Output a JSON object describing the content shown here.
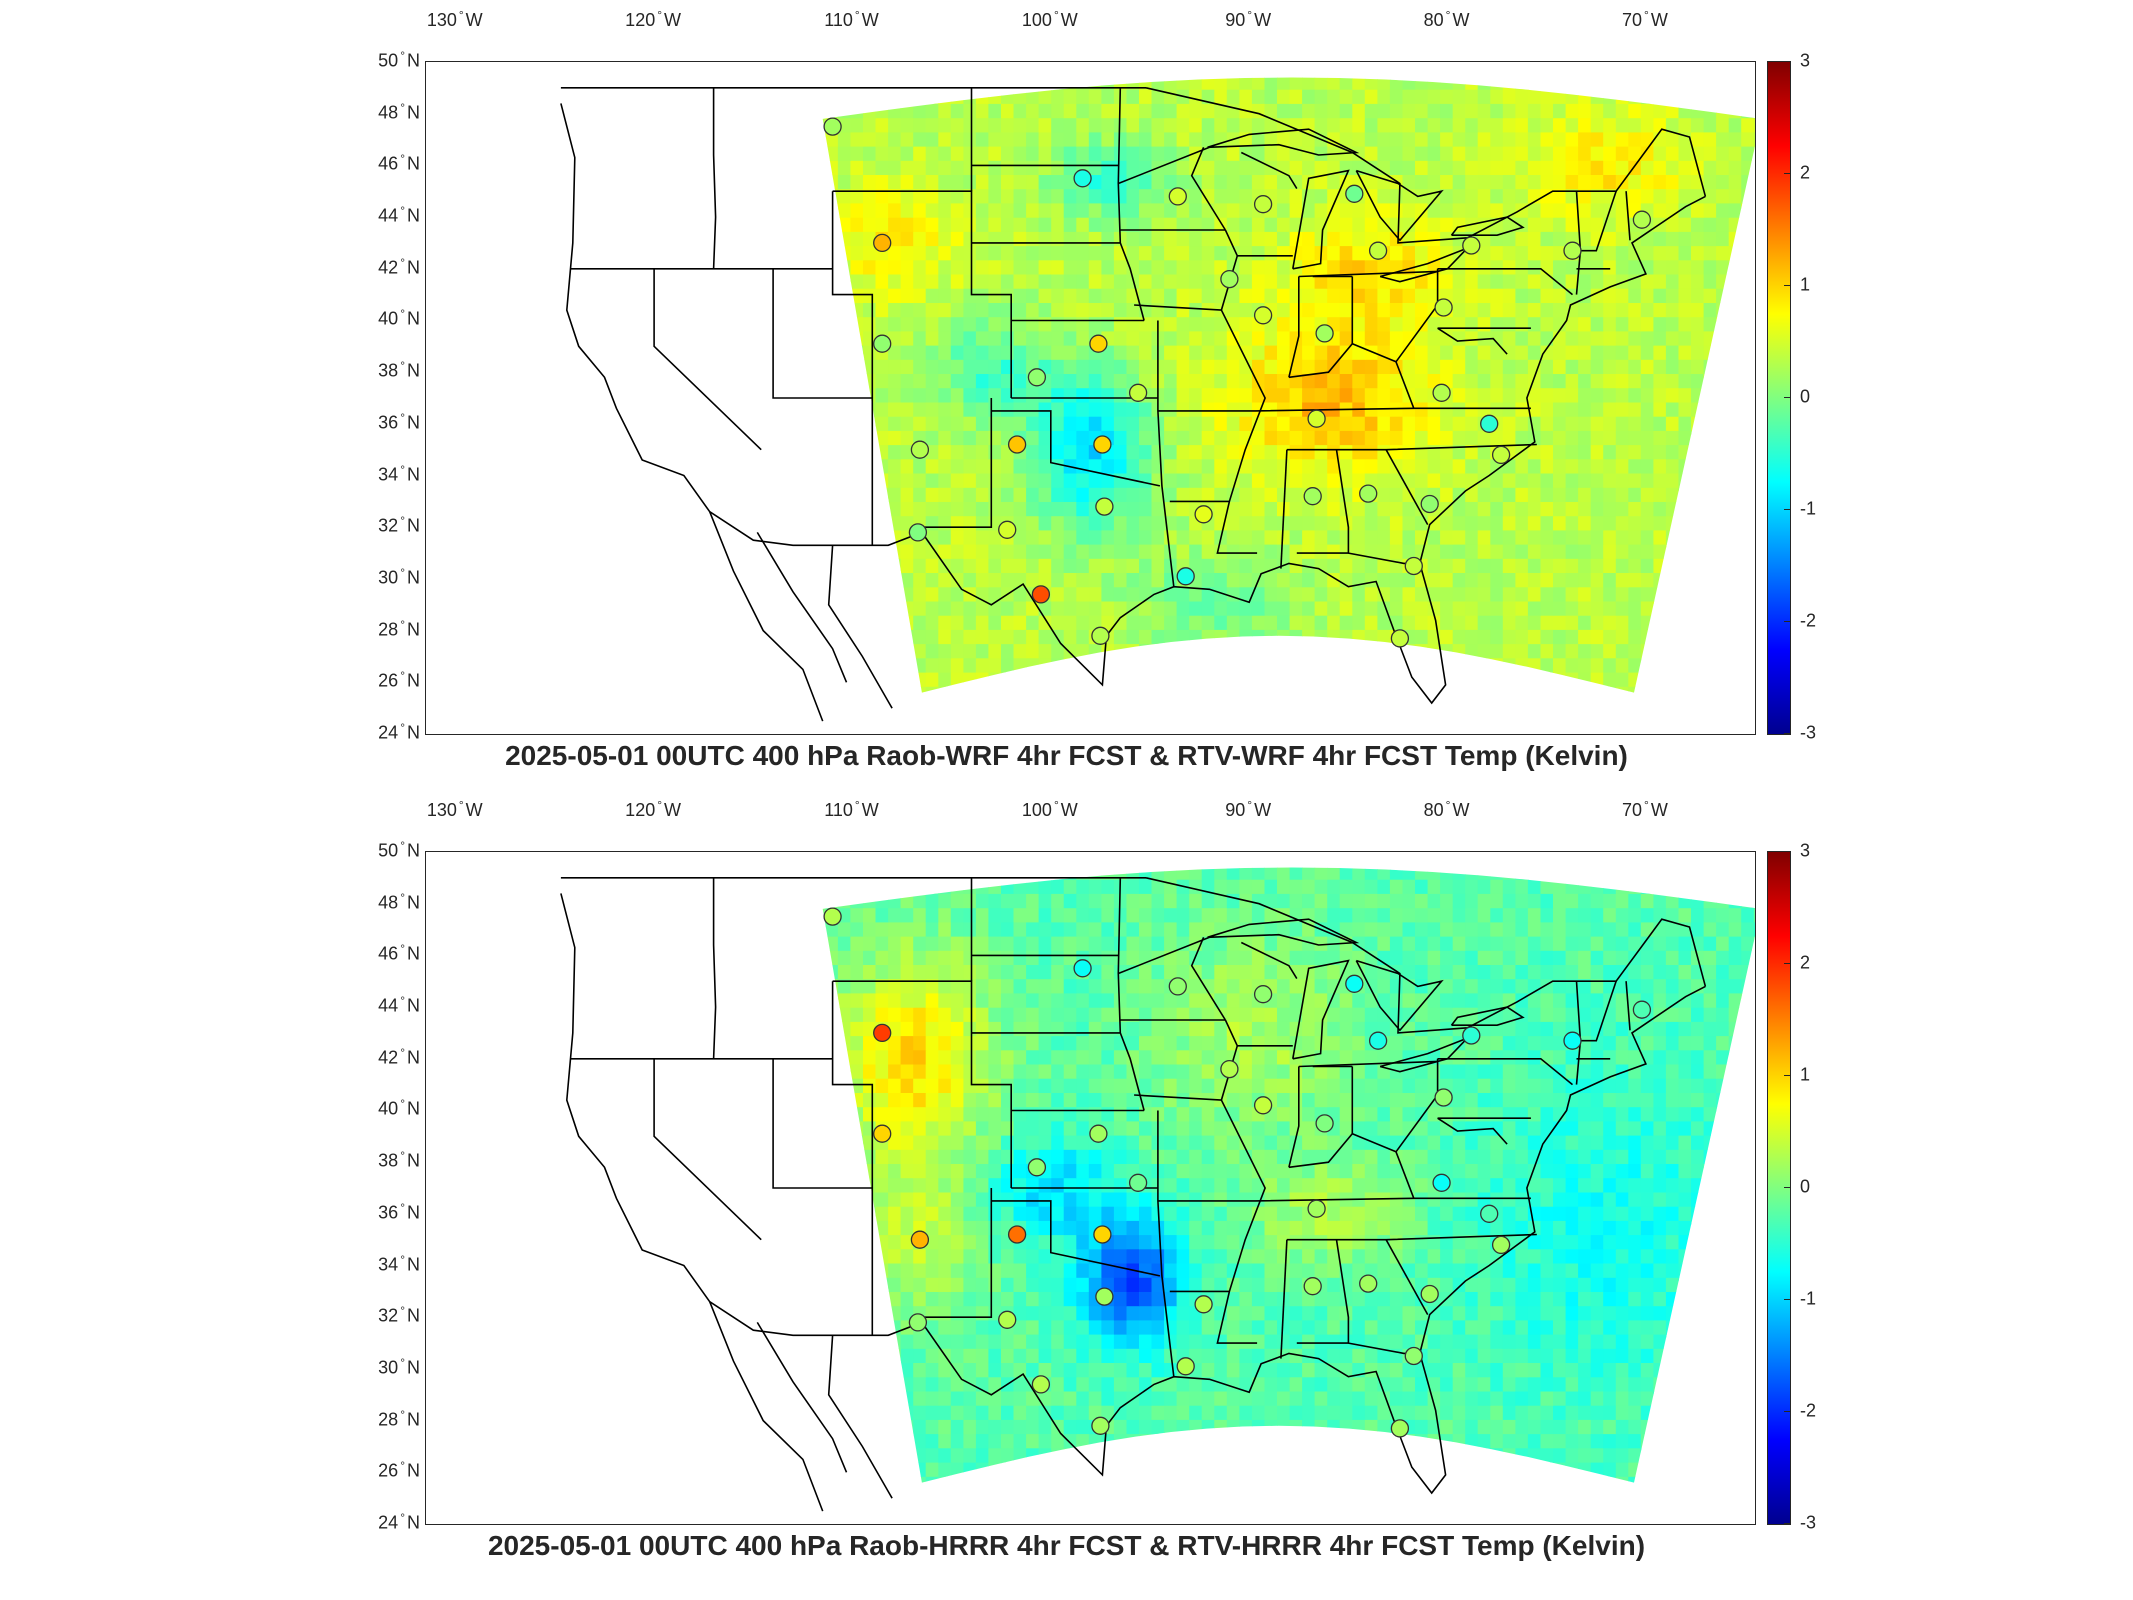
{
  "panels": [
    {
      "title": "2025-05-01 00UTC 400 hPa Raob-WRF 4hr FCST & RTV-WRF 4hr FCST Temp (Kelvin)",
      "field_bias": "warm-east",
      "stations": [
        {
          "lon": -111.0,
          "lat": 47.5,
          "value": 0.2
        },
        {
          "lon": -108.5,
          "lat": 43.0,
          "value": 1.2
        },
        {
          "lon": -98.4,
          "lat": 45.5,
          "value": -0.6
        },
        {
          "lon": -93.6,
          "lat": 44.8,
          "value": 0.5
        },
        {
          "lon": -89.3,
          "lat": 44.5,
          "value": 0.4
        },
        {
          "lon": -84.7,
          "lat": 44.9,
          "value": -0.1
        },
        {
          "lon": -83.5,
          "lat": 42.7,
          "value": 0.4
        },
        {
          "lon": -78.8,
          "lat": 42.9,
          "value": 0.4
        },
        {
          "lon": -73.7,
          "lat": 42.7,
          "value": 0.3
        },
        {
          "lon": -70.2,
          "lat": 43.9,
          "value": 0.3
        },
        {
          "lon": -91.0,
          "lat": 41.6,
          "value": 0.2
        },
        {
          "lon": -89.3,
          "lat": 40.2,
          "value": 0.5
        },
        {
          "lon": -86.2,
          "lat": 39.5,
          "value": 0.2
        },
        {
          "lon": -80.2,
          "lat": 40.5,
          "value": 0.4
        },
        {
          "lon": -108.5,
          "lat": 39.1,
          "value": 0.1
        },
        {
          "lon": -100.7,
          "lat": 37.8,
          "value": 0.1
        },
        {
          "lon": -97.6,
          "lat": 39.1,
          "value": 1.0
        },
        {
          "lon": -95.6,
          "lat": 37.2,
          "value": 0.4
        },
        {
          "lon": -106.6,
          "lat": 35.0,
          "value": 0.3
        },
        {
          "lon": -101.7,
          "lat": 35.2,
          "value": 1.1
        },
        {
          "lon": -97.4,
          "lat": 35.2,
          "value": 1.0
        },
        {
          "lon": -86.6,
          "lat": 36.2,
          "value": 0.5
        },
        {
          "lon": -80.3,
          "lat": 37.2,
          "value": 0.3
        },
        {
          "lon": -77.9,
          "lat": 36.0,
          "value": -0.5
        },
        {
          "lon": -77.3,
          "lat": 34.8,
          "value": 0.4
        },
        {
          "lon": -102.2,
          "lat": 31.9,
          "value": 0.5
        },
        {
          "lon": -106.7,
          "lat": 31.8,
          "value": 0.0
        },
        {
          "lon": -97.3,
          "lat": 32.8,
          "value": 0.4
        },
        {
          "lon": -92.3,
          "lat": 32.5,
          "value": 0.6
        },
        {
          "lon": -86.8,
          "lat": 33.2,
          "value": 0.2
        },
        {
          "lon": -84.0,
          "lat": 33.3,
          "value": 0.2
        },
        {
          "lon": -80.9,
          "lat": 32.9,
          "value": 0.1
        },
        {
          "lon": -100.5,
          "lat": 29.4,
          "value": 1.8
        },
        {
          "lon": -97.5,
          "lat": 27.8,
          "value": 0.3
        },
        {
          "lon": -93.2,
          "lat": 30.1,
          "value": -0.6
        },
        {
          "lon": -81.7,
          "lat": 30.5,
          "value": 0.4
        },
        {
          "lon": -82.4,
          "lat": 27.7,
          "value": 0.4
        }
      ]
    },
    {
      "title": "2025-05-01 00UTC 400 hPa Raob-HRRR 4hr FCST & RTV-HRRR 4hr FCST Temp (Kelvin)",
      "field_bias": "warm-west",
      "stations": [
        {
          "lon": -111.0,
          "lat": 47.5,
          "value": 0.3
        },
        {
          "lon": -108.5,
          "lat": 43.0,
          "value": 1.9
        },
        {
          "lon": -98.4,
          "lat": 45.5,
          "value": -0.7
        },
        {
          "lon": -93.6,
          "lat": 44.8,
          "value": 0.1
        },
        {
          "lon": -89.3,
          "lat": 44.5,
          "value": 0.1
        },
        {
          "lon": -84.7,
          "lat": 44.9,
          "value": -0.7
        },
        {
          "lon": -83.5,
          "lat": 42.7,
          "value": -0.6
        },
        {
          "lon": -78.8,
          "lat": 42.9,
          "value": -0.5
        },
        {
          "lon": -73.7,
          "lat": 42.7,
          "value": -0.7
        },
        {
          "lon": -70.2,
          "lat": 43.9,
          "value": -0.3
        },
        {
          "lon": -91.0,
          "lat": 41.6,
          "value": 0.3
        },
        {
          "lon": -89.3,
          "lat": 40.2,
          "value": 0.4
        },
        {
          "lon": -86.2,
          "lat": 39.5,
          "value": 0.0
        },
        {
          "lon": -80.2,
          "lat": 40.5,
          "value": 0.1
        },
        {
          "lon": -108.5,
          "lat": 39.1,
          "value": 1.0
        },
        {
          "lon": -100.7,
          "lat": 37.8,
          "value": 0.1
        },
        {
          "lon": -97.6,
          "lat": 39.1,
          "value": 0.2
        },
        {
          "lon": -95.6,
          "lat": 37.2,
          "value": -0.1
        },
        {
          "lon": -106.6,
          "lat": 35.0,
          "value": 1.2
        },
        {
          "lon": -101.7,
          "lat": 35.2,
          "value": 1.6
        },
        {
          "lon": -97.4,
          "lat": 35.2,
          "value": 1.0
        },
        {
          "lon": -86.6,
          "lat": 36.2,
          "value": 0.2
        },
        {
          "lon": -80.3,
          "lat": 37.2,
          "value": -0.7
        },
        {
          "lon": -77.9,
          "lat": 36.0,
          "value": -0.3
        },
        {
          "lon": -77.3,
          "lat": 34.8,
          "value": 0.2
        },
        {
          "lon": -102.2,
          "lat": 31.9,
          "value": 0.3
        },
        {
          "lon": -106.7,
          "lat": 31.8,
          "value": 0.1
        },
        {
          "lon": -97.3,
          "lat": 32.8,
          "value": 0.2
        },
        {
          "lon": -92.3,
          "lat": 32.5,
          "value": 0.3
        },
        {
          "lon": -86.8,
          "lat": 33.2,
          "value": 0.2
        },
        {
          "lon": -84.0,
          "lat": 33.3,
          "value": 0.2
        },
        {
          "lon": -80.9,
          "lat": 32.9,
          "value": 0.2
        },
        {
          "lon": -100.5,
          "lat": 29.4,
          "value": 0.3
        },
        {
          "lon": -97.5,
          "lat": 27.8,
          "value": 0.2
        },
        {
          "lon": -93.2,
          "lat": 30.1,
          "value": 0.3
        },
        {
          "lon": -81.7,
          "lat": 30.5,
          "value": 0.1
        },
        {
          "lon": -82.4,
          "lat": 27.7,
          "value": 0.2
        }
      ]
    }
  ],
  "lon_labels": [
    {
      "value": -130,
      "text": "130",
      "hemi": "W"
    },
    {
      "value": -120,
      "text": "120",
      "hemi": "W"
    },
    {
      "value": -110,
      "text": "110",
      "hemi": "W"
    },
    {
      "value": -100,
      "text": "100",
      "hemi": "W"
    },
    {
      "value": -90,
      "text": "90",
      "hemi": "W"
    },
    {
      "value": -80,
      "text": "80",
      "hemi": "W"
    },
    {
      "value": -70,
      "text": "70",
      "hemi": "W"
    }
  ],
  "lat_labels": [
    {
      "value": 50,
      "text": "50",
      "hemi": "N"
    },
    {
      "value": 48,
      "text": "48",
      "hemi": "N"
    },
    {
      "value": 46,
      "text": "46",
      "hemi": "N"
    },
    {
      "value": 44,
      "text": "44",
      "hemi": "N"
    },
    {
      "value": 42,
      "text": "42",
      "hemi": "N"
    },
    {
      "value": 40,
      "text": "40",
      "hemi": "N"
    },
    {
      "value": 38,
      "text": "38",
      "hemi": "N"
    },
    {
      "value": 36,
      "text": "36",
      "hemi": "N"
    },
    {
      "value": 34,
      "text": "34",
      "hemi": "N"
    },
    {
      "value": 32,
      "text": "32",
      "hemi": "N"
    },
    {
      "value": 30,
      "text": "30",
      "hemi": "N"
    },
    {
      "value": 28,
      "text": "28",
      "hemi": "N"
    },
    {
      "value": 26,
      "text": "26",
      "hemi": "N"
    },
    {
      "value": 24,
      "text": "24",
      "hemi": "N"
    }
  ],
  "colorbar": {
    "range": [
      -3,
      3
    ],
    "ticks": [
      "3",
      "2",
      "1",
      "0",
      "-1",
      "-2",
      "-3"
    ],
    "colormap": [
      "#800000",
      "#ff0000",
      "#ff8000",
      "#ffff00",
      "#80ff80",
      "#00ffff",
      "#0080ff",
      "#0000ff",
      "#00008f"
    ]
  },
  "map_extent": {
    "lon": [
      -131.5,
      -64.5
    ],
    "lat": [
      24,
      50
    ]
  },
  "colors": {
    "outline": "#000000",
    "text": "#262626",
    "missing": "#ffffff"
  }
}
